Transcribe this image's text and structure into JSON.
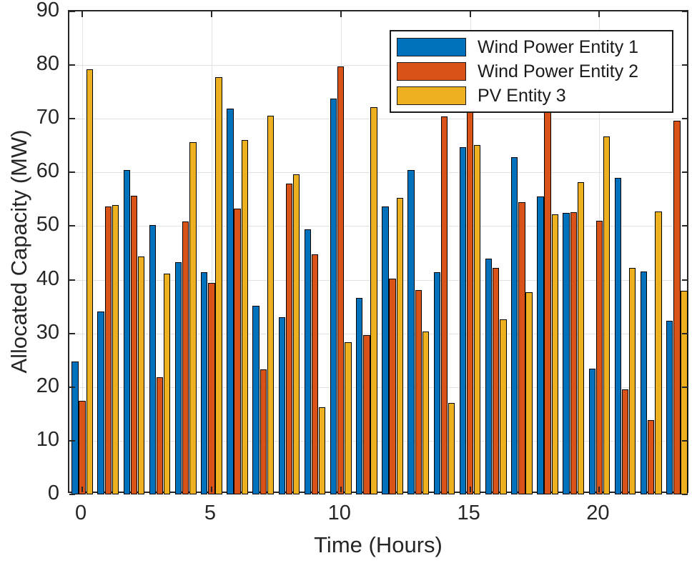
{
  "chart_data": {
    "type": "bar",
    "title": "",
    "xlabel": "Time (Hours)",
    "ylabel": "Allocated Capacity (MW)",
    "ylim": [
      0,
      90
    ],
    "xlim": [
      -0.5,
      23.5
    ],
    "yticks": [
      0,
      10,
      20,
      30,
      40,
      50,
      60,
      70,
      80,
      90
    ],
    "xticks": [
      0,
      5,
      10,
      15,
      20
    ],
    "grid": true,
    "legend_position": "top-right",
    "categories": [
      0,
      1,
      2,
      3,
      4,
      5,
      6,
      7,
      8,
      9,
      10,
      11,
      12,
      13,
      14,
      15,
      16,
      17,
      18,
      19,
      20,
      21,
      22,
      23
    ],
    "series": [
      {
        "name": "Wind Power Entity 1",
        "color": "#0072BD",
        "values": [
          24.8,
          34.1,
          60.4,
          50.2,
          43.3,
          41.4,
          71.9,
          35.2,
          33.0,
          49.4,
          73.7,
          36.6,
          53.6,
          60.4,
          41.4,
          64.7,
          44.0,
          62.9,
          55.5,
          52.4,
          23.4,
          59.0,
          41.6,
          32.4
        ]
      },
      {
        "name": "Wind Power Entity 2",
        "color": "#D95319",
        "values": [
          17.4,
          53.6,
          55.6,
          21.9,
          50.9,
          39.4,
          53.3,
          23.3,
          57.9,
          44.7,
          79.8,
          29.7,
          40.2,
          38.1,
          70.4,
          71.6,
          42.2,
          54.4,
          71.5,
          52.6,
          51.0,
          19.6,
          13.8,
          69.6
        ]
      },
      {
        "name": "PV Entity 3",
        "color": "#EDB120",
        "values": [
          79.2,
          53.9,
          44.4,
          41.2,
          65.6,
          77.8,
          66.0,
          70.6,
          59.7,
          16.2,
          28.4,
          72.1,
          55.3,
          30.3,
          17.1,
          65.1,
          32.6,
          37.7,
          52.2,
          58.2,
          66.7,
          42.2,
          52.7,
          38.0
        ]
      }
    ],
    "colors": {
      "axis": "#262626",
      "grid": "#e2e2e2",
      "bar_edge": "#000000",
      "background": "#ffffff"
    }
  }
}
